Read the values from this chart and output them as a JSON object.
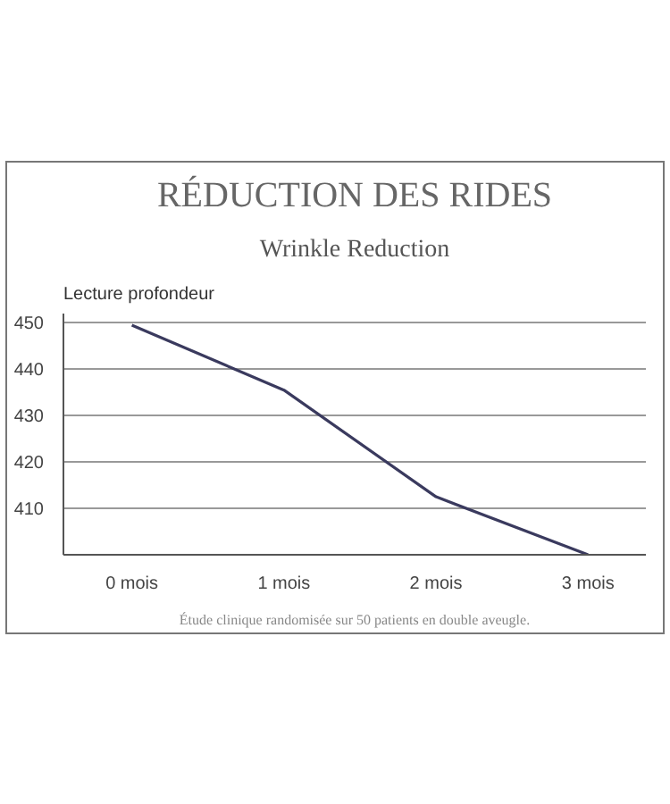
{
  "chart_data": {
    "type": "line",
    "title": "RÉDUCTION DES RIDES",
    "subtitle": "Wrinkle Reduction",
    "ylabel": "Lecture profondeur",
    "categories": [
      "0 mois",
      "1 mois",
      "2 mois",
      "3 mois"
    ],
    "series": [
      {
        "color": "#3a3a5e",
        "values": [
          449.5,
          435.5,
          412.5,
          400
        ]
      }
    ],
    "ylim": [
      400,
      452
    ],
    "yticks": [
      410,
      420,
      430,
      440,
      450
    ],
    "grid": "y",
    "marker": "none",
    "line_style": "solid",
    "annotations": [
      "Étude clinique randomisée sur 50 patients en double aveugle."
    ]
  }
}
